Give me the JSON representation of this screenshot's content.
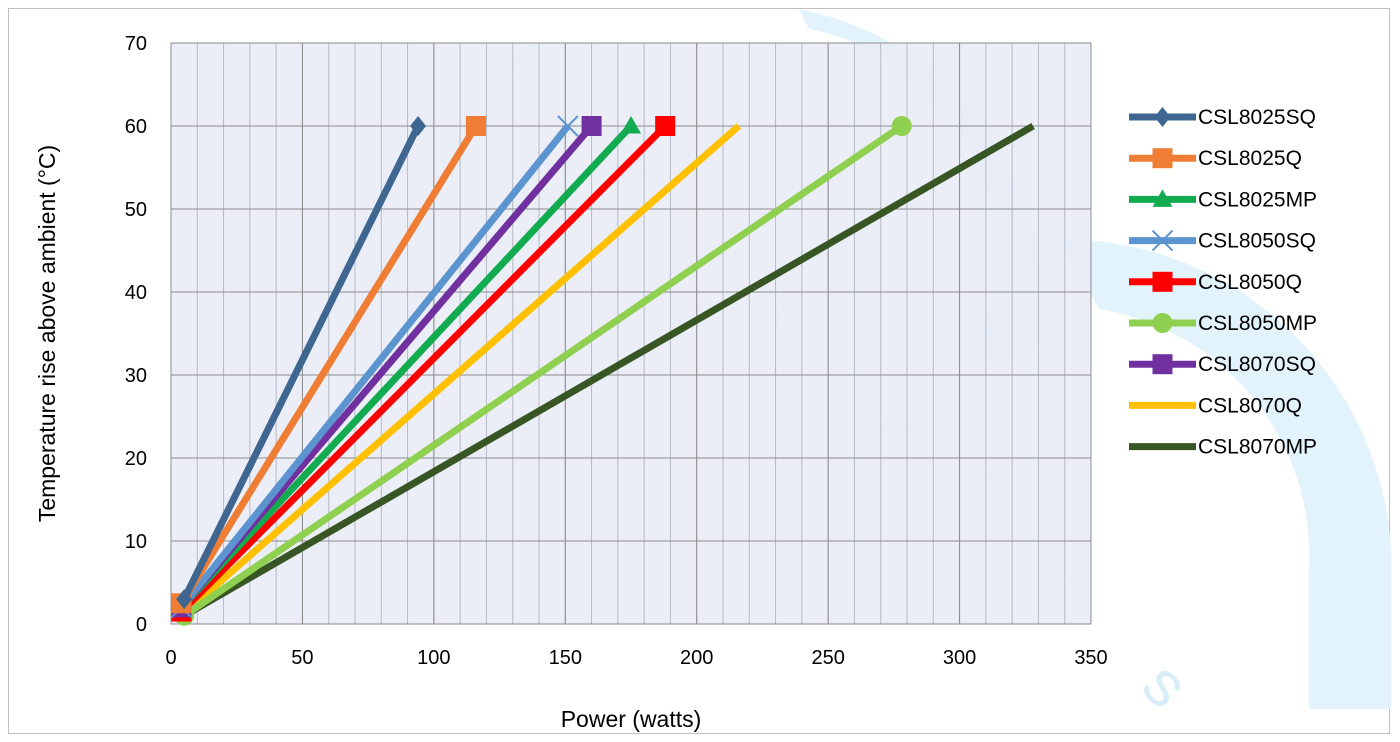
{
  "chart_data": {
    "type": "line",
    "xlabel": "Power (watts)",
    "ylabel": "Temperature  rise  above  ambient (°C)",
    "xlim": [
      0,
      350
    ],
    "ylim": [
      0,
      70
    ],
    "xticks": [
      "0",
      "50",
      "100",
      "150",
      "200",
      "250",
      "300",
      "350"
    ],
    "yticks": [
      "0",
      "10",
      "20",
      "30",
      "40",
      "50",
      "60",
      "70"
    ],
    "x_minor_step": 10,
    "grid": true,
    "legend_position": "right",
    "plot_background": "#e9edf6",
    "series": [
      {
        "name": "CSL8025SQ",
        "color": "#3e6690",
        "marker": "diamond",
        "x": [
          5,
          94
        ],
        "y": [
          3,
          60
        ]
      },
      {
        "name": "CSL8025Q",
        "color": "#ef7e34",
        "marker": "square",
        "x": [
          4,
          116
        ],
        "y": [
          2.5,
          60
        ]
      },
      {
        "name": "CSL8025MP",
        "color": "#12ab50",
        "marker": "triangle",
        "x": [
          4,
          175
        ],
        "y": [
          2,
          60
        ]
      },
      {
        "name": "CSL8050SQ",
        "color": "#5b94cf",
        "marker": "x",
        "x": [
          4,
          151
        ],
        "y": [
          2,
          60
        ]
      },
      {
        "name": "CSL8050Q",
        "color": "#ff0000",
        "marker": "square",
        "x": [
          4,
          188
        ],
        "y": [
          1.5,
          60
        ]
      },
      {
        "name": "CSL8050MP",
        "color": "#90d050",
        "marker": "circle",
        "x": [
          5,
          278
        ],
        "y": [
          1,
          60
        ]
      },
      {
        "name": "CSL8070SQ",
        "color": "#7030a0",
        "marker": "square",
        "x": [
          4,
          160
        ],
        "y": [
          2,
          60
        ]
      },
      {
        "name": "CSL8070Q",
        "color": "#ffc000",
        "marker": "none",
        "x": [
          4,
          216
        ],
        "y": [
          1,
          60
        ]
      },
      {
        "name": "CSL8070MP",
        "color": "#375623",
        "marker": "none",
        "x": [
          5,
          328
        ],
        "y": [
          1,
          60
        ]
      }
    ],
    "watermark_text": "c r o n i c s"
  }
}
